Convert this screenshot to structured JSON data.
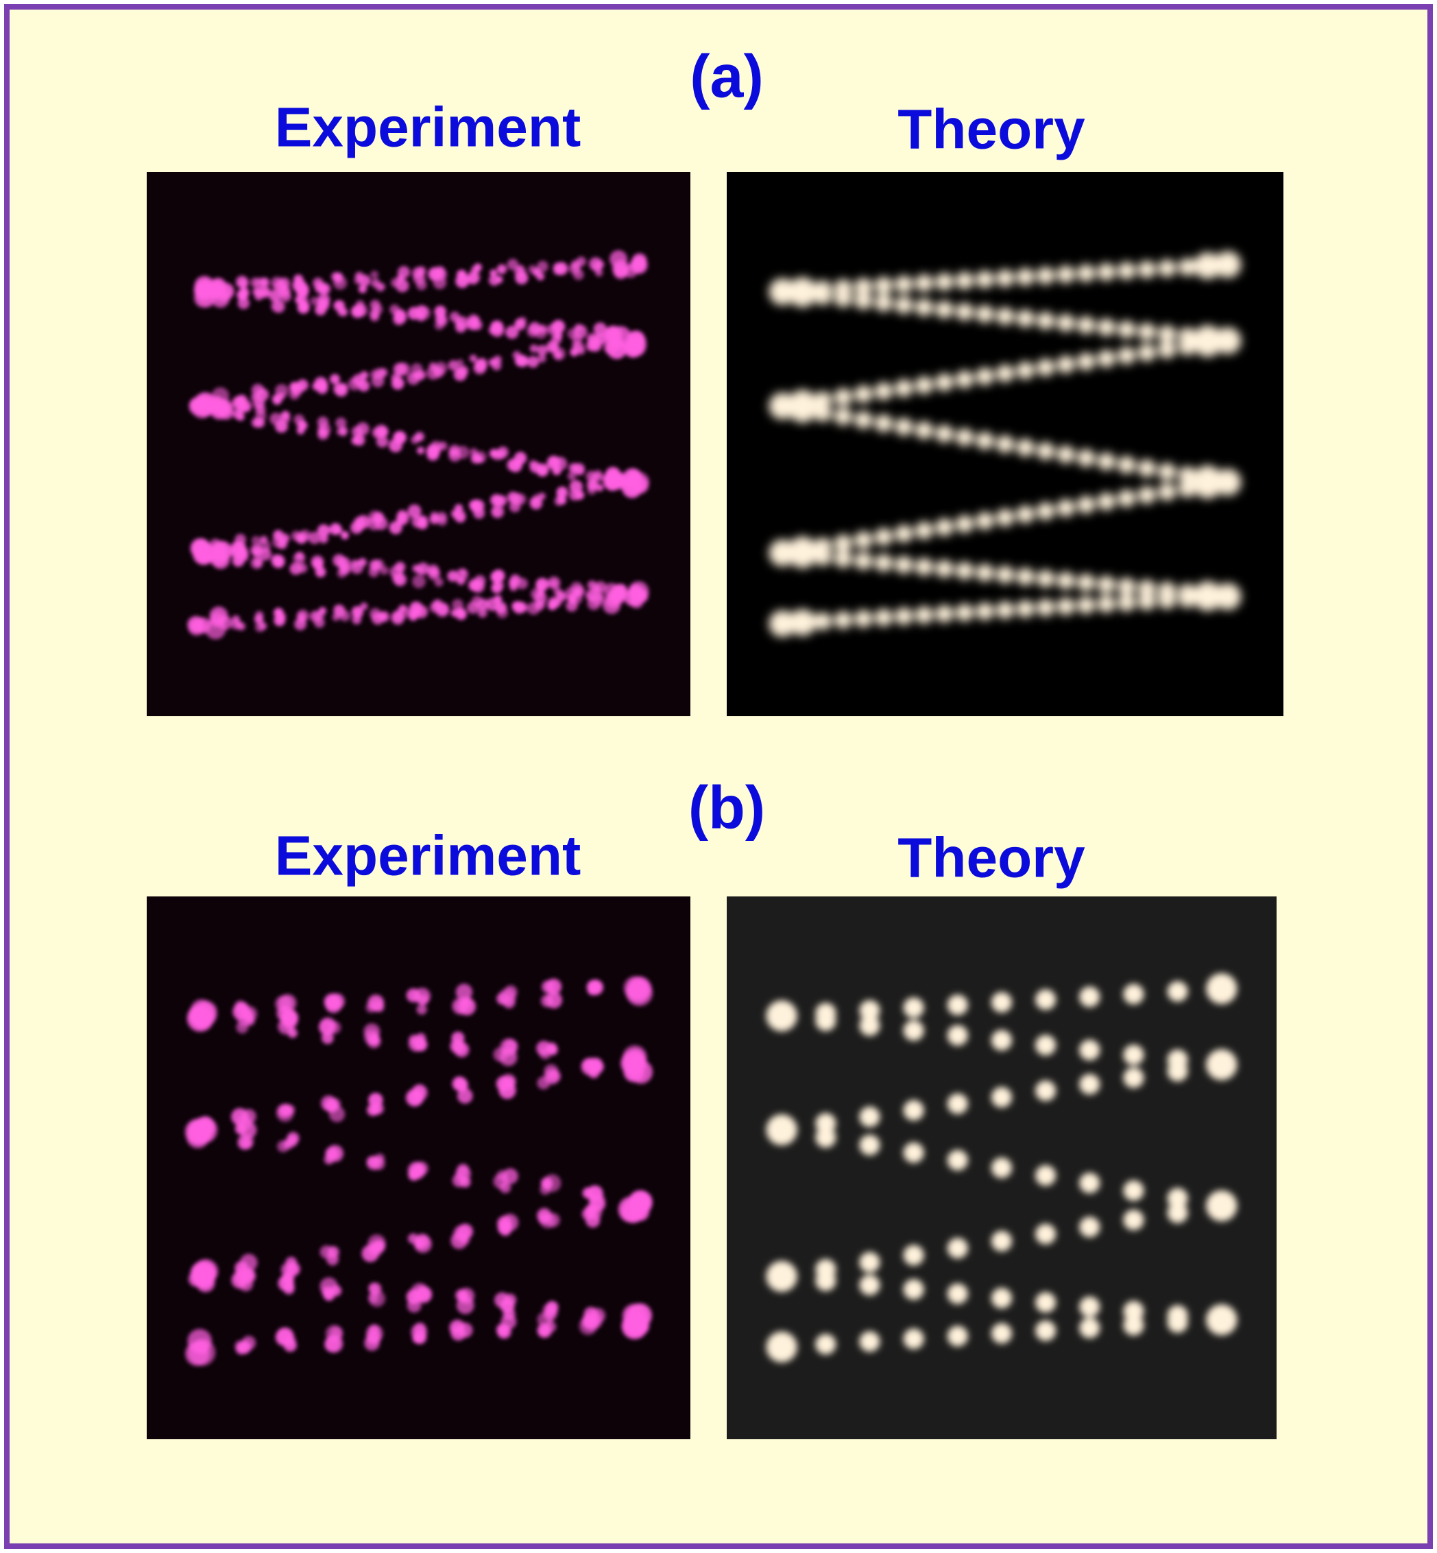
{
  "panels": [
    {
      "label": "(a)",
      "images": [
        {
          "title": "Experiment"
        },
        {
          "title": "Theory"
        }
      ]
    },
    {
      "label": "(b)",
      "images": [
        {
          "title": "Experiment"
        },
        {
          "title": "Theory"
        }
      ]
    }
  ]
}
